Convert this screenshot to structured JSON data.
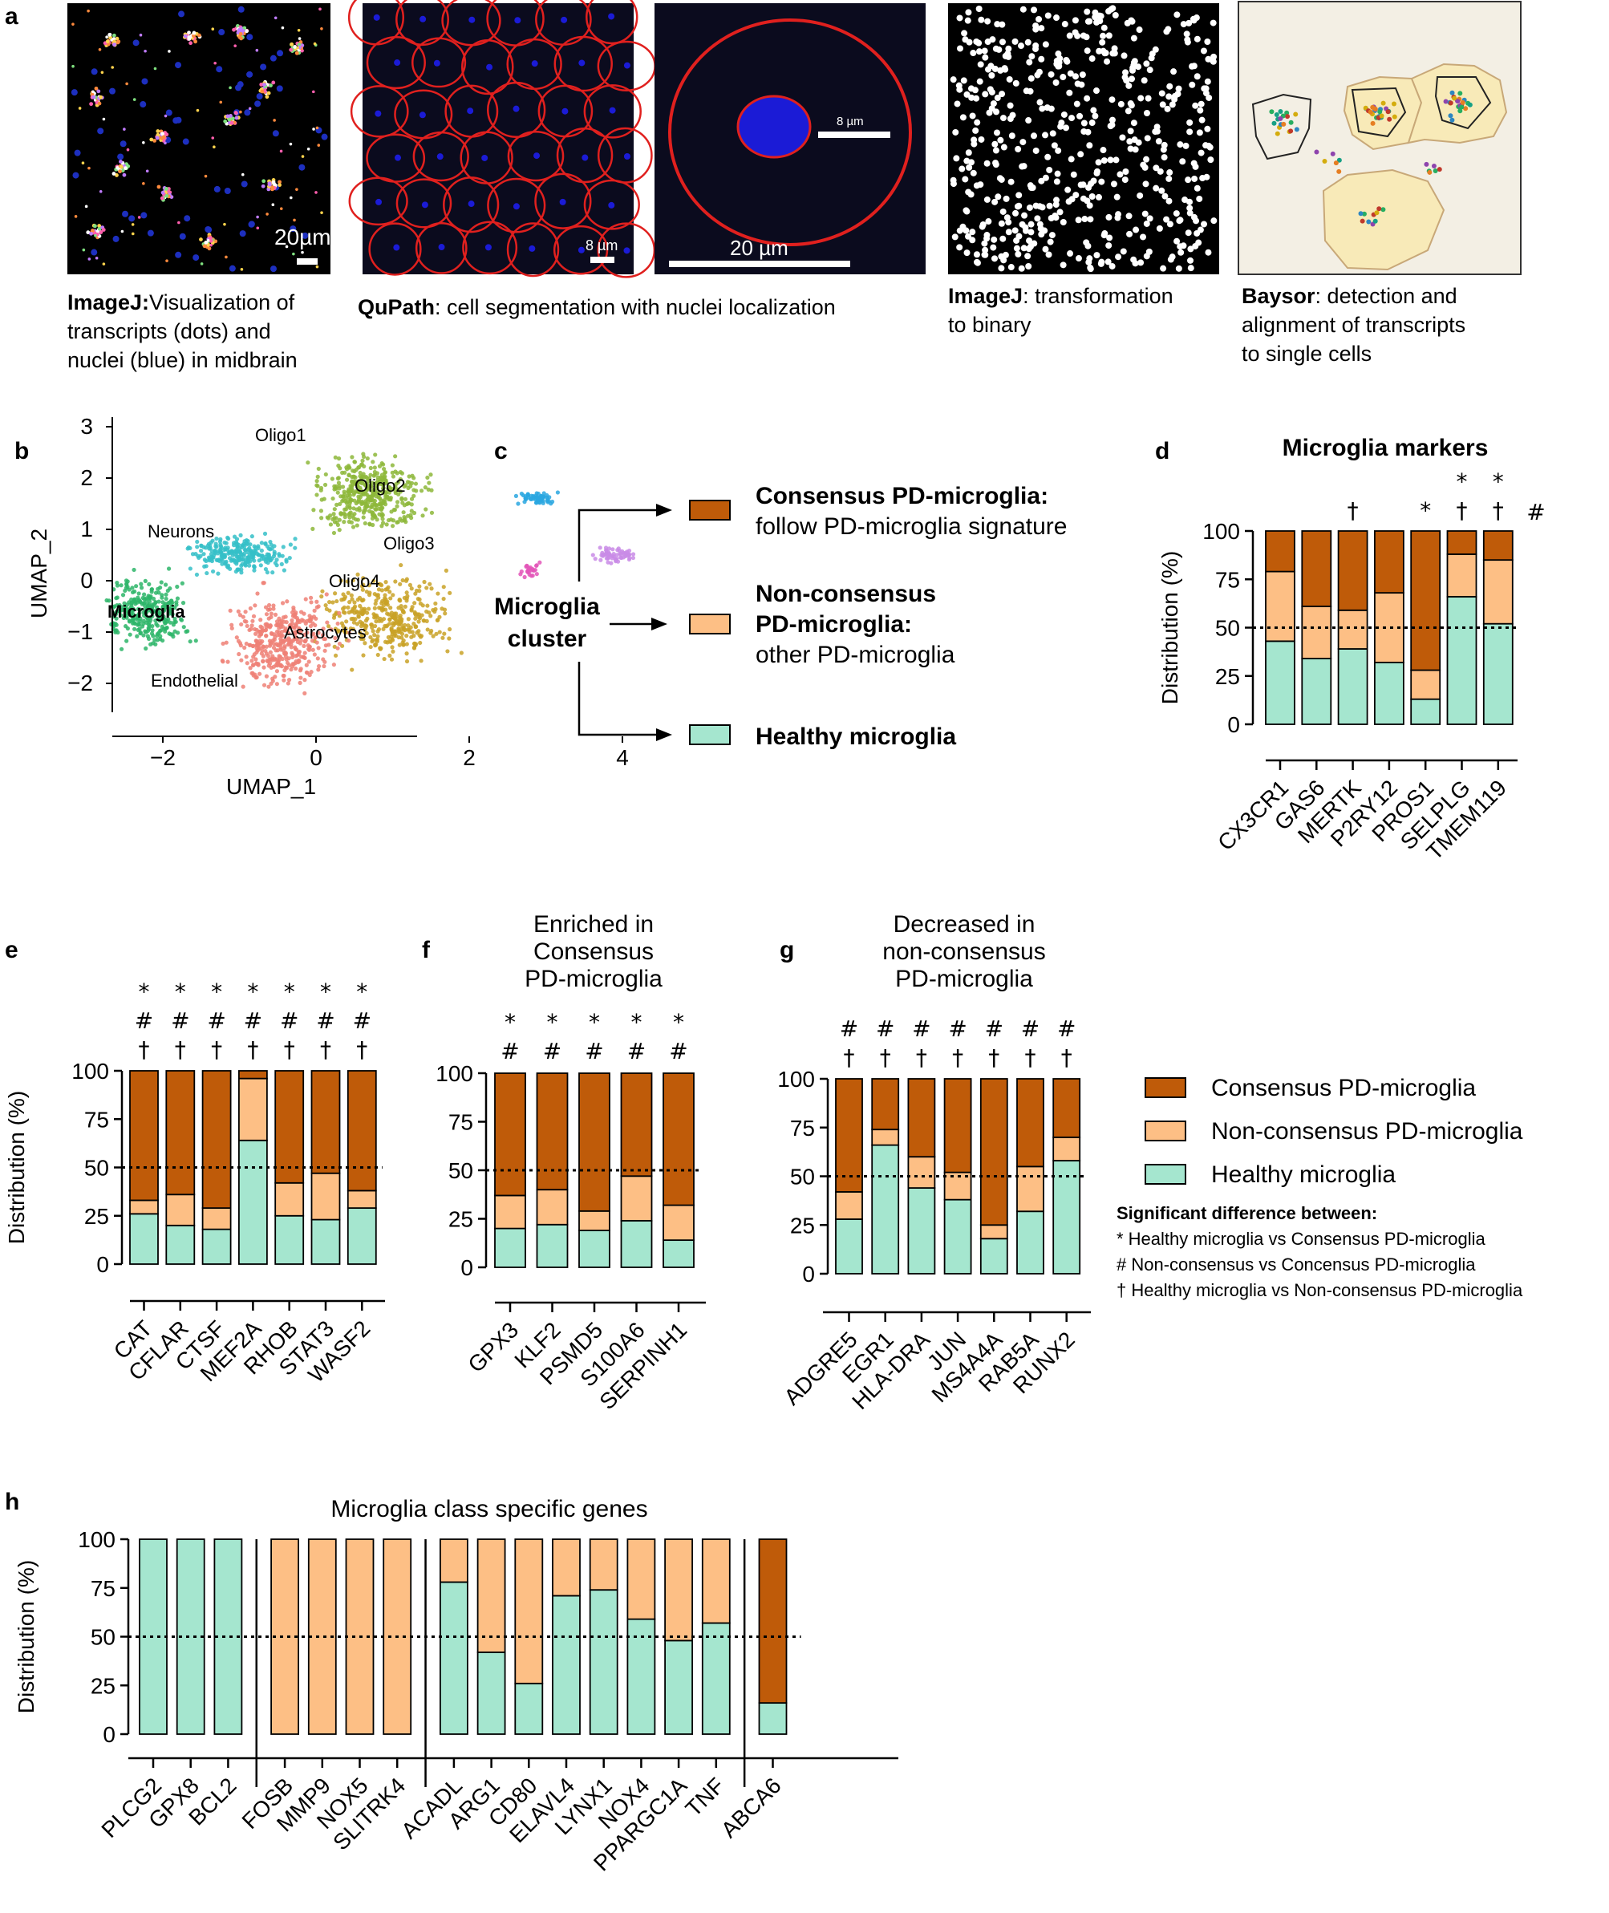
{
  "colors": {
    "consensus": "#bf5b09",
    "nonconsensus": "#fdbf85",
    "healthy": "#a5e6cf",
    "axis": "#000000",
    "segmentation": "#e0201e",
    "nuclei": "#1b1bd6",
    "baysor_bg": "#f3efe4",
    "cell_fill": "#f8eab8"
  },
  "panel_a": {
    "letter": "a",
    "scale_20": "20µm",
    "scale_8": "8 µm",
    "scale_8b": "8 µm",
    "scale_20b": "20 µm",
    "caption1_bold": "ImageJ:",
    "caption1_rest1": "Visualization of",
    "caption1_rest2": "transcripts (dots) and",
    "caption1_rest3": "nuclei (blue) in midbrain",
    "caption2_bold": "QuPath",
    "caption2_rest": ": cell segmentation with nuclei localization",
    "caption3_bold": "ImageJ",
    "caption3_rest1": ": transformation",
    "caption3_rest2": "to binary",
    "caption4_bold": "Baysor",
    "caption4_rest1": ": detection and",
    "caption4_rest2": "alignment of transcripts",
    "caption4_rest3": "to single cells"
  },
  "panel_b": {
    "letter": "b",
    "xlabel": "UMAP_1",
    "ylabel": "UMAP_2",
    "xticks": [
      "−2",
      "0",
      "2",
      "4"
    ],
    "yticks": [
      "3",
      "2",
      "1",
      "0",
      "−1",
      "−2"
    ],
    "clusters": [
      {
        "name": "Oligo1",
        "color": "#8db73a"
      },
      {
        "name": "Oligo2",
        "color": "#2aa7e0"
      },
      {
        "name": "Neurons",
        "color": "#35bfc8"
      },
      {
        "name": "Oligo3",
        "color": "#c98be6"
      },
      {
        "name": "Oligo4",
        "color": "#e356b8"
      },
      {
        "name": "Microglia",
        "color": "#2db569"
      },
      {
        "name": "Astrocytes",
        "color": "#c9a227"
      },
      {
        "name": "Endothelial",
        "color": "#ef8076"
      }
    ]
  },
  "panel_c": {
    "letter": "c",
    "source1": "Microglia",
    "source2": "cluster",
    "item1_title": "Consensus PD-microglia:",
    "item1_sub": "follow PD-microglia signature",
    "item2_title1": "Non-consensus",
    "item2_title2": "PD-microglia:",
    "item2_sub": "other PD-microglia",
    "item3_title": "Healthy microglia"
  },
  "legend": {
    "consensus": "Consensus PD-microglia",
    "nonconsensus": "Non-consensus PD-microglia",
    "healthy": "Healthy microglia",
    "sig_title": "Significant difference between:",
    "sig1": "* Healthy microglia vs Consensus PD-microglia",
    "sig2": "# Non-consensus vs Concensus PD-microglia",
    "sig3": "† Healthy microglia vs Non-consensus PD-microglia"
  },
  "yaxis_label": "Distribution (%)",
  "yticks": [
    "0",
    "25",
    "50",
    "75",
    "100"
  ],
  "chart_data": [
    {
      "panel": "d",
      "type": "bar",
      "stacked": true,
      "title": "Microglia markers",
      "ylabel": "Distribution (%)",
      "ylim": [
        0,
        100
      ],
      "categories": [
        "CX3CR1",
        "GAS6",
        "MERTK",
        "P2RY12",
        "PROS1",
        "SELPLG",
        "TMEM119"
      ],
      "series": [
        {
          "name": "Healthy microglia",
          "values": [
            43,
            34,
            39,
            32,
            13,
            66,
            52
          ]
        },
        {
          "name": "Non-consensus PD-microglia",
          "values": [
            36,
            27,
            20,
            36,
            15,
            22,
            33
          ]
        },
        {
          "name": "Consensus PD-microglia",
          "values": [
            21,
            39,
            41,
            32,
            72,
            12,
            15
          ]
        }
      ],
      "significance": [
        "",
        "",
        "†",
        "",
        "*",
        "*\n†",
        "*\n†"
      ],
      "extra_mark": "#"
    },
    {
      "panel": "e",
      "type": "bar",
      "stacked": true,
      "title": "",
      "ylabel": "Distribution (%)",
      "ylim": [
        0,
        100
      ],
      "categories": [
        "CAT",
        "CFLAR",
        "CTSF",
        "MEF2A",
        "RHOB",
        "STAT3",
        "WASF2"
      ],
      "series": [
        {
          "name": "Healthy microglia",
          "values": [
            26,
            20,
            18,
            64,
            25,
            23,
            29
          ]
        },
        {
          "name": "Non-consensus PD-microglia",
          "values": [
            7,
            16,
            11,
            32,
            17,
            24,
            9
          ]
        },
        {
          "name": "Consensus PD-microglia",
          "values": [
            67,
            64,
            71,
            4,
            58,
            53,
            62
          ]
        }
      ],
      "significance": [
        "*\n#\n†",
        "*\n#\n†",
        "*\n#\n†",
        "*\n#\n†",
        "*\n#\n†",
        "*\n#\n†",
        "*\n#\n†"
      ]
    },
    {
      "panel": "f",
      "type": "bar",
      "stacked": true,
      "title": "Enriched in\nConsensus\nPD-microglia",
      "ylabel": "",
      "ylim": [
        0,
        100
      ],
      "categories": [
        "GPX3",
        "KLF2",
        "PSMD5",
        "S100A6",
        "SERPINH1"
      ],
      "series": [
        {
          "name": "Healthy microglia",
          "values": [
            20,
            22,
            19,
            24,
            14
          ]
        },
        {
          "name": "Non-consensus PD-microglia",
          "values": [
            17,
            18,
            10,
            23,
            18
          ]
        },
        {
          "name": "Consensus PD-microglia",
          "values": [
            63,
            60,
            71,
            53,
            68
          ]
        }
      ],
      "significance": [
        "*\n#",
        "*\n#",
        "*\n#",
        "*\n#",
        "*\n#"
      ]
    },
    {
      "panel": "g",
      "type": "bar",
      "stacked": true,
      "title": "Decreased in\nnon-consensus\nPD-microglia",
      "ylabel": "",
      "ylim": [
        0,
        100
      ],
      "categories": [
        "ADGRE5",
        "EGR1",
        "HLA-DRA",
        "JUN",
        "MS4A4A",
        "RAB5A",
        "RUNX2"
      ],
      "series": [
        {
          "name": "Healthy microglia",
          "values": [
            28,
            66,
            44,
            38,
            18,
            32,
            58
          ]
        },
        {
          "name": "Non-consensus PD-microglia",
          "values": [
            14,
            8,
            16,
            14,
            7,
            23,
            12
          ]
        },
        {
          "name": "Consensus PD-microglia",
          "values": [
            58,
            26,
            40,
            48,
            75,
            45,
            30
          ]
        }
      ],
      "significance": [
        "#\n†",
        "#\n†",
        "#\n†",
        "#\n†",
        "#\n†",
        "#\n†",
        "#\n†"
      ]
    },
    {
      "panel": "h",
      "type": "bar",
      "stacked": true,
      "title": "Microglia class specific genes",
      "ylabel": "Distribution (%)",
      "ylim": [
        0,
        100
      ],
      "categories": [
        "PLCG2",
        "GPX8",
        "BCL2",
        "FOSB",
        "MMP9",
        "NOX5",
        "SLITRK4",
        "ACADL",
        "ARG1",
        "CD80",
        "ELAVL4",
        "LYNX1",
        "NOX4",
        "PPARGC1A",
        "TNF",
        "ABCA6"
      ],
      "groups": [
        3,
        4,
        8,
        1
      ],
      "series": [
        {
          "name": "Healthy microglia",
          "values": [
            100,
            100,
            100,
            0,
            0,
            0,
            0,
            78,
            42,
            26,
            71,
            74,
            59,
            48,
            57,
            16
          ]
        },
        {
          "name": "Non-consensus PD-microglia",
          "values": [
            0,
            0,
            0,
            100,
            100,
            100,
            100,
            22,
            58,
            74,
            29,
            26,
            41,
            52,
            43,
            0
          ]
        },
        {
          "name": "Consensus PD-microglia",
          "values": [
            0,
            0,
            0,
            0,
            0,
            0,
            0,
            0,
            0,
            0,
            0,
            0,
            0,
            0,
            0,
            84
          ]
        }
      ]
    }
  ]
}
